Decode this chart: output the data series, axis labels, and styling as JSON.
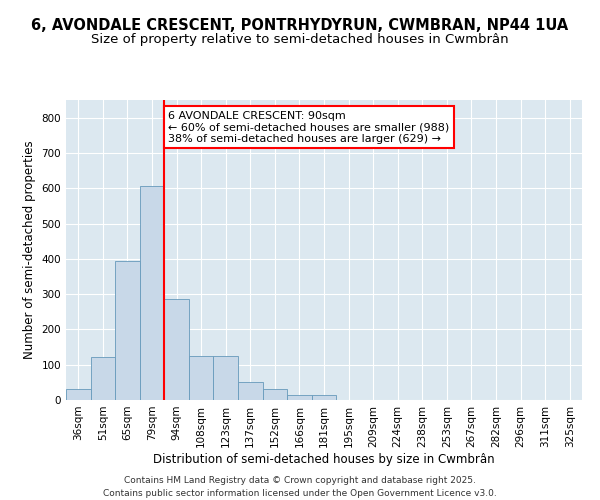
{
  "title_line1": "6, AVONDALE CRESCENT, PONTRHYDYRUN, CWMBRAN, NP44 1UA",
  "title_line2": "Size of property relative to semi-detached houses in Cwmbrân",
  "xlabel": "Distribution of semi-detached houses by size in Cwmbrân",
  "ylabel": "Number of semi-detached properties",
  "categories": [
    "36sqm",
    "51sqm",
    "65sqm",
    "79sqm",
    "94sqm",
    "108sqm",
    "123sqm",
    "137sqm",
    "152sqm",
    "166sqm",
    "181sqm",
    "195sqm",
    "209sqm",
    "224sqm",
    "238sqm",
    "253sqm",
    "267sqm",
    "282sqm",
    "296sqm",
    "311sqm",
    "325sqm"
  ],
  "values": [
    30,
    122,
    395,
    605,
    285,
    125,
    125,
    50,
    30,
    15,
    13,
    0,
    0,
    0,
    0,
    0,
    0,
    0,
    0,
    0,
    0
  ],
  "bar_color": "#c8d8e8",
  "bar_edge_color": "#6699bb",
  "red_line_index": 4,
  "annotation_text": "6 AVONDALE CRESCENT: 90sqm\n← 60% of semi-detached houses are smaller (988)\n38% of semi-detached houses are larger (629) →",
  "ylim": [
    0,
    850
  ],
  "yticks": [
    0,
    100,
    200,
    300,
    400,
    500,
    600,
    700,
    800
  ],
  "grid_color": "#cccccc",
  "background_color": "#dce8f0",
  "footer_text": "Contains HM Land Registry data © Crown copyright and database right 2025.\nContains public sector information licensed under the Open Government Licence v3.0.",
  "title_fontsize": 10.5,
  "subtitle_fontsize": 9.5,
  "axis_label_fontsize": 8.5,
  "tick_fontsize": 7.5,
  "annotation_fontsize": 8,
  "footer_fontsize": 6.5
}
